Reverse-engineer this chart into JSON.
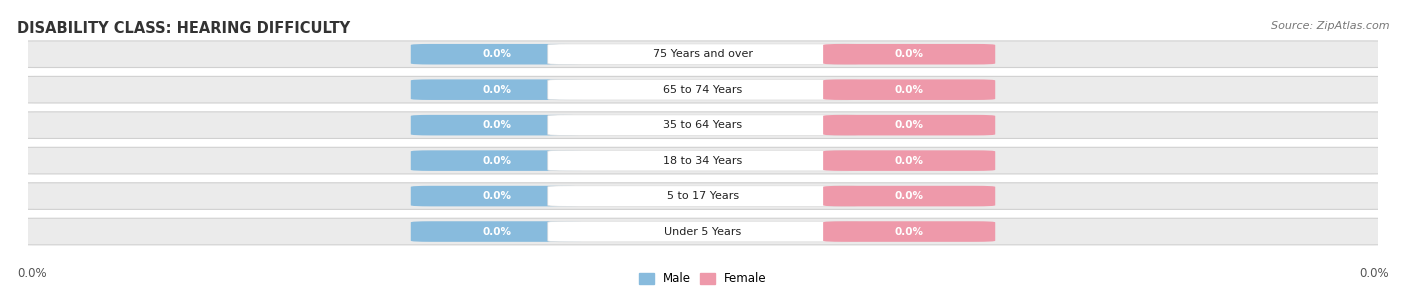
{
  "title": "DISABILITY CLASS: HEARING DIFFICULTY",
  "source": "Source: ZipAtlas.com",
  "categories": [
    "Under 5 Years",
    "5 to 17 Years",
    "18 to 34 Years",
    "35 to 64 Years",
    "65 to 74 Years",
    "75 Years and over"
  ],
  "male_values": [
    0.0,
    0.0,
    0.0,
    0.0,
    0.0,
    0.0
  ],
  "female_values": [
    0.0,
    0.0,
    0.0,
    0.0,
    0.0,
    0.0
  ],
  "male_color": "#88bbdd",
  "female_color": "#ee99aa",
  "male_label": "Male",
  "female_label": "Female",
  "bar_bg_color": "#ebebeb",
  "bar_stroke_color": "#d0d0d0",
  "axis_label_left": "0.0%",
  "axis_label_right": "0.0%",
  "title_fontsize": 10.5,
  "source_fontsize": 8,
  "label_fontsize": 8.5,
  "background_color": "#ffffff",
  "xlim": [
    -1.0,
    1.0
  ]
}
